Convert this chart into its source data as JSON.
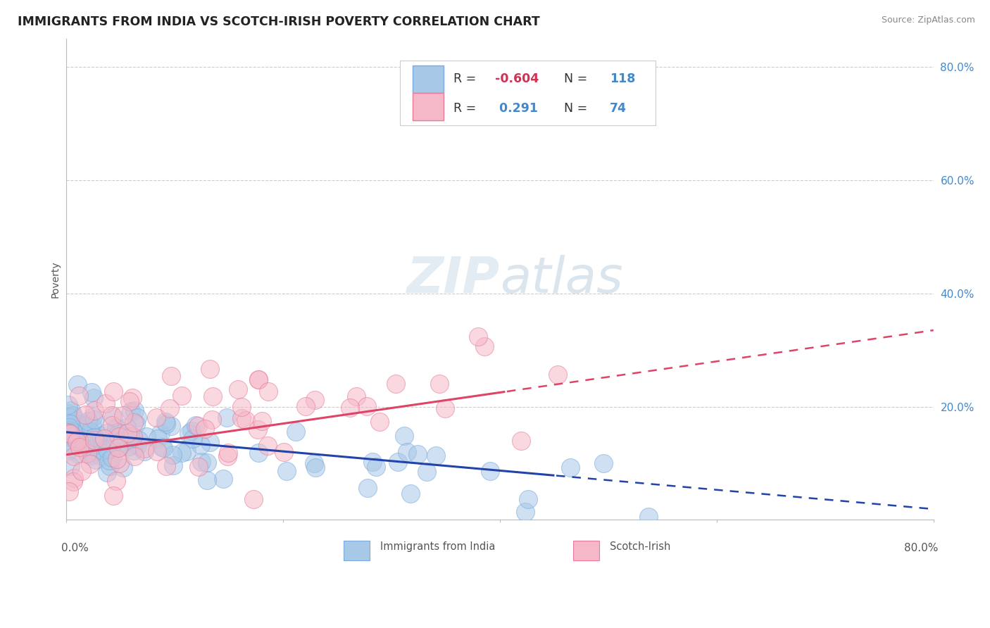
{
  "title": "IMMIGRANTS FROM INDIA VS SCOTCH-IRISH POVERTY CORRELATION CHART",
  "source": "Source: ZipAtlas.com",
  "ylabel": "Poverty",
  "xlim": [
    0.0,
    0.8
  ],
  "ylim": [
    0.0,
    0.85
  ],
  "r_india": -0.604,
  "n_india": 118,
  "r_scotch": 0.291,
  "n_scotch": 74,
  "india_color": "#a8c8e8",
  "india_edge_color": "#7aabdc",
  "scotch_color": "#f5b8c8",
  "scotch_edge_color": "#e87a9a",
  "india_line_color": "#2244aa",
  "scotch_line_color": "#dd4466",
  "watermark_color": "#d0dce8",
  "background_color": "#ffffff",
  "grid_color": "#cccccc",
  "ytick_color": "#4488cc",
  "title_color": "#222222",
  "source_color": "#888888",
  "axis_label_color": "#555555",
  "legend_box_edge": "#cccccc"
}
